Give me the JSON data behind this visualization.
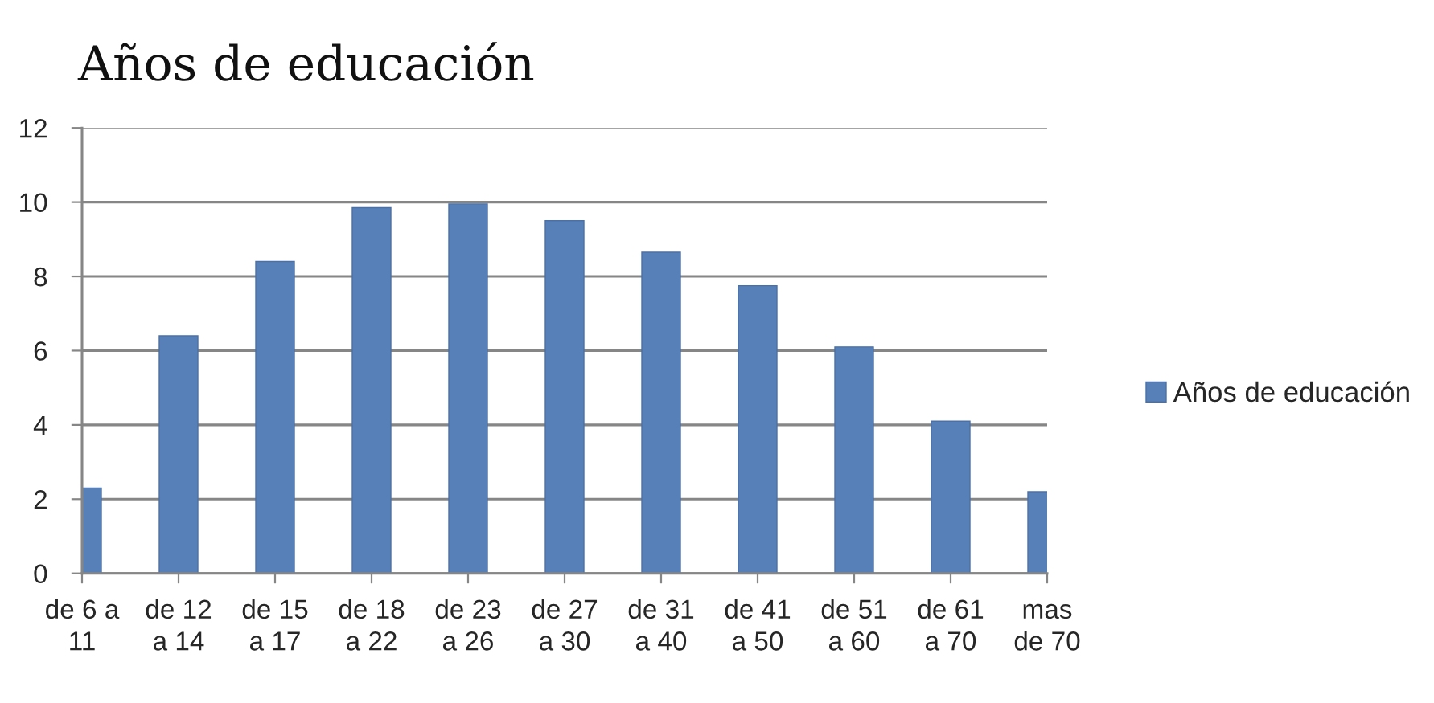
{
  "chart_data": {
    "type": "bar",
    "title": "Años de educación",
    "categories": [
      "de 6 a\n11",
      "de 12\na 14",
      "de 15\na 17",
      "de 18\na 22",
      "de 23\na 26",
      "de 27\na 30",
      "de 31\na 40",
      "de 41\na 50",
      "de 51\na 60",
      "de 61\na 70",
      "mas\nde 70"
    ],
    "series": [
      {
        "name": "Años de educación",
        "color": "#5880b8",
        "values": [
          2.3,
          6.4,
          8.4,
          9.85,
          9.95,
          9.5,
          8.65,
          7.75,
          6.1,
          4.1,
          2.2
        ]
      }
    ],
    "ylim": [
      0,
      12
    ],
    "yticks": [
      0,
      2,
      4,
      6,
      8,
      10,
      12
    ],
    "grid": "y",
    "legend": "right"
  }
}
